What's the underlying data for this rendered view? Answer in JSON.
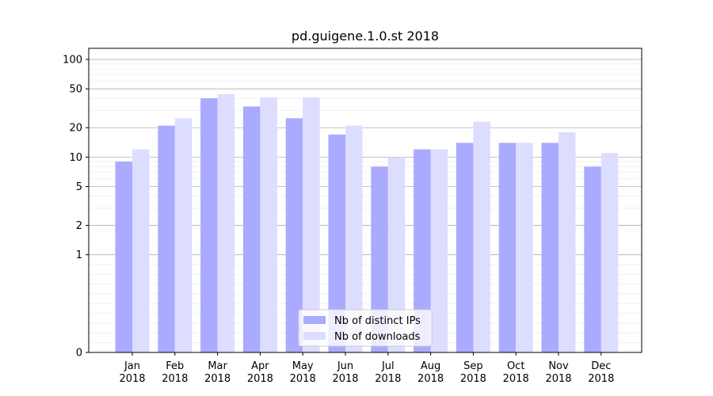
{
  "chart_data": {
    "type": "bar",
    "title": "pd.guigene.1.0.st 2018",
    "xlabel": "",
    "ylabel": "",
    "yscale": "symlog",
    "ylim": [
      0,
      130
    ],
    "yticks": [
      0,
      1,
      2,
      5,
      10,
      20,
      50,
      100
    ],
    "grid": true,
    "legend_position": "lower-center",
    "categories": [
      [
        "Jan",
        "2018"
      ],
      [
        "Feb",
        "2018"
      ],
      [
        "Mar",
        "2018"
      ],
      [
        "Apr",
        "2018"
      ],
      [
        "May",
        "2018"
      ],
      [
        "Jun",
        "2018"
      ],
      [
        "Jul",
        "2018"
      ],
      [
        "Aug",
        "2018"
      ],
      [
        "Sep",
        "2018"
      ],
      [
        "Oct",
        "2018"
      ],
      [
        "Nov",
        "2018"
      ],
      [
        "Dec",
        "2018"
      ]
    ],
    "series": [
      {
        "name": "Nb of distinct IPs",
        "color": "#aaaaff",
        "values": [
          9,
          21,
          40,
          33,
          25,
          17,
          8,
          12,
          14,
          14,
          14,
          8
        ]
      },
      {
        "name": "Nb of downloads",
        "color": "#ddddff",
        "values": [
          12,
          25,
          44,
          41,
          41,
          21,
          10,
          12,
          23,
          14,
          18,
          11
        ]
      }
    ]
  }
}
